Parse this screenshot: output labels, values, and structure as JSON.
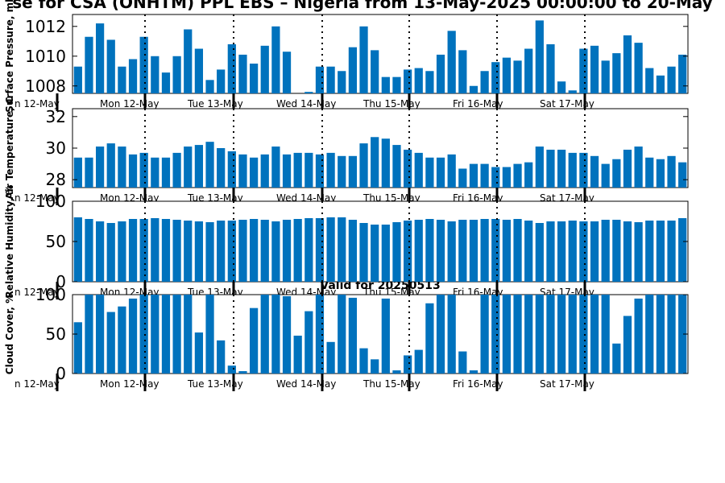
{
  "title": "se for CSA (ONHTM) PPL EBS  – Nigeria from 13-May-2025 00:00:00 to 20-May",
  "valid_label": "Valid for 20250513",
  "colors": {
    "bar": "#0072bd",
    "axis": "#000000"
  },
  "chart_data": [
    {
      "type": "bar",
      "ylabel": "Surface Pressure, mb",
      "ylim": [
        1007.5,
        1012.8
      ],
      "yticks": [
        "1008",
        "1010",
        "1012"
      ],
      "xticks": [
        "n 12-May",
        "Mon 12-May",
        "Tue 13-May",
        "Wed 14-May",
        "Thu 15-May",
        "Fri 16-May",
        "Sat 17-May"
      ],
      "values": [
        1009.3,
        1011.3,
        1012.2,
        1011.1,
        1009.3,
        1009.8,
        1011.3,
        1010.0,
        1008.9,
        1010.0,
        1011.8,
        1010.5,
        1008.4,
        1009.1,
        1010.8,
        1010.1,
        1009.5,
        1010.7,
        1012.0,
        1010.3,
        1007.2,
        1007.6,
        1009.3,
        1009.3,
        1009.0,
        1010.6,
        1012.0,
        1010.4,
        1008.6,
        1008.6,
        1009.1,
        1009.2,
        1009.0,
        1010.1,
        1011.7,
        1010.4,
        1008.0,
        1009.0,
        1009.6,
        1009.9,
        1009.7,
        1010.5,
        1012.4,
        1010.8,
        1008.3,
        1007.7,
        1010.5,
        1010.7,
        1009.7,
        1010.2,
        1011.4,
        1010.9,
        1009.2,
        1008.7,
        1009.3,
        1010.1
      ]
    },
    {
      "type": "bar",
      "ylabel": "Air Temperature, C",
      "ylim": [
        27.5,
        32.5
      ],
      "yticks": [
        "28",
        "30",
        "32"
      ],
      "xticks": [
        "n 12-May",
        "Mon 12-May",
        "Tue 13-May",
        "Wed 14-May",
        "Thu 15-May",
        "Fri 16-May",
        "Sat 17-May"
      ],
      "values": [
        29.4,
        29.4,
        30.1,
        30.3,
        30.1,
        29.6,
        29.7,
        29.4,
        29.4,
        29.7,
        30.1,
        30.2,
        30.4,
        30.0,
        29.8,
        29.6,
        29.4,
        29.6,
        30.1,
        29.6,
        29.7,
        29.7,
        29.6,
        29.7,
        29.5,
        29.5,
        30.3,
        30.7,
        30.6,
        30.2,
        29.9,
        29.7,
        29.4,
        29.4,
        29.6,
        28.7,
        29.0,
        29.0,
        28.8,
        28.8,
        29.0,
        29.1,
        30.1,
        29.9,
        29.9,
        29.7,
        29.7,
        29.5,
        29.0,
        29.3,
        29.9,
        30.1,
        29.4,
        29.3,
        29.5,
        29.1
      ]
    },
    {
      "type": "bar",
      "ylabel": "Relative Humidity, %",
      "ylim": [
        0,
        100
      ],
      "yticks": [
        "0",
        "50",
        "100"
      ],
      "xticks": [
        "n 12-May",
        "Mon 12-May",
        "Tue 13-May",
        "Wed 14-May",
        "Thu 15-May",
        "Fri 16-May",
        "Sat 17-May"
      ],
      "values": [
        80,
        78,
        75,
        73,
        75,
        78,
        78,
        79,
        78,
        77,
        76,
        75,
        74,
        76,
        76,
        77,
        78,
        77,
        75,
        77,
        78,
        79,
        79,
        80,
        80,
        77,
        73,
        71,
        71,
        74,
        76,
        77,
        78,
        77,
        75,
        77,
        77,
        78,
        78,
        77,
        78,
        76,
        73,
        75,
        75,
        76,
        75,
        75,
        77,
        77,
        75,
        74,
        76,
        76,
        76,
        79
      ]
    },
    {
      "type": "bar",
      "ylabel": "Cloud Cover, %",
      "ylim": [
        0,
        100
      ],
      "yticks": [
        "0",
        "50",
        "100"
      ],
      "xticks": [
        "n 12-May",
        "Mon 12-May",
        "Tue 13-May",
        "Wed 14-May",
        "Thu 15-May",
        "Fri 16-May",
        "Sat 17-May"
      ],
      "values": [
        65,
        100,
        100,
        78,
        85,
        95,
        100,
        100,
        100,
        100,
        100,
        52,
        100,
        42,
        10,
        3,
        83,
        100,
        100,
        98,
        48,
        79,
        100,
        40,
        100,
        96,
        32,
        18,
        95,
        4,
        23,
        30,
        89,
        100,
        100,
        28,
        4,
        100,
        100,
        100,
        100,
        100,
        100,
        100,
        100,
        100,
        100,
        100,
        100,
        38,
        73,
        95,
        100,
        100,
        100,
        100
      ]
    }
  ]
}
